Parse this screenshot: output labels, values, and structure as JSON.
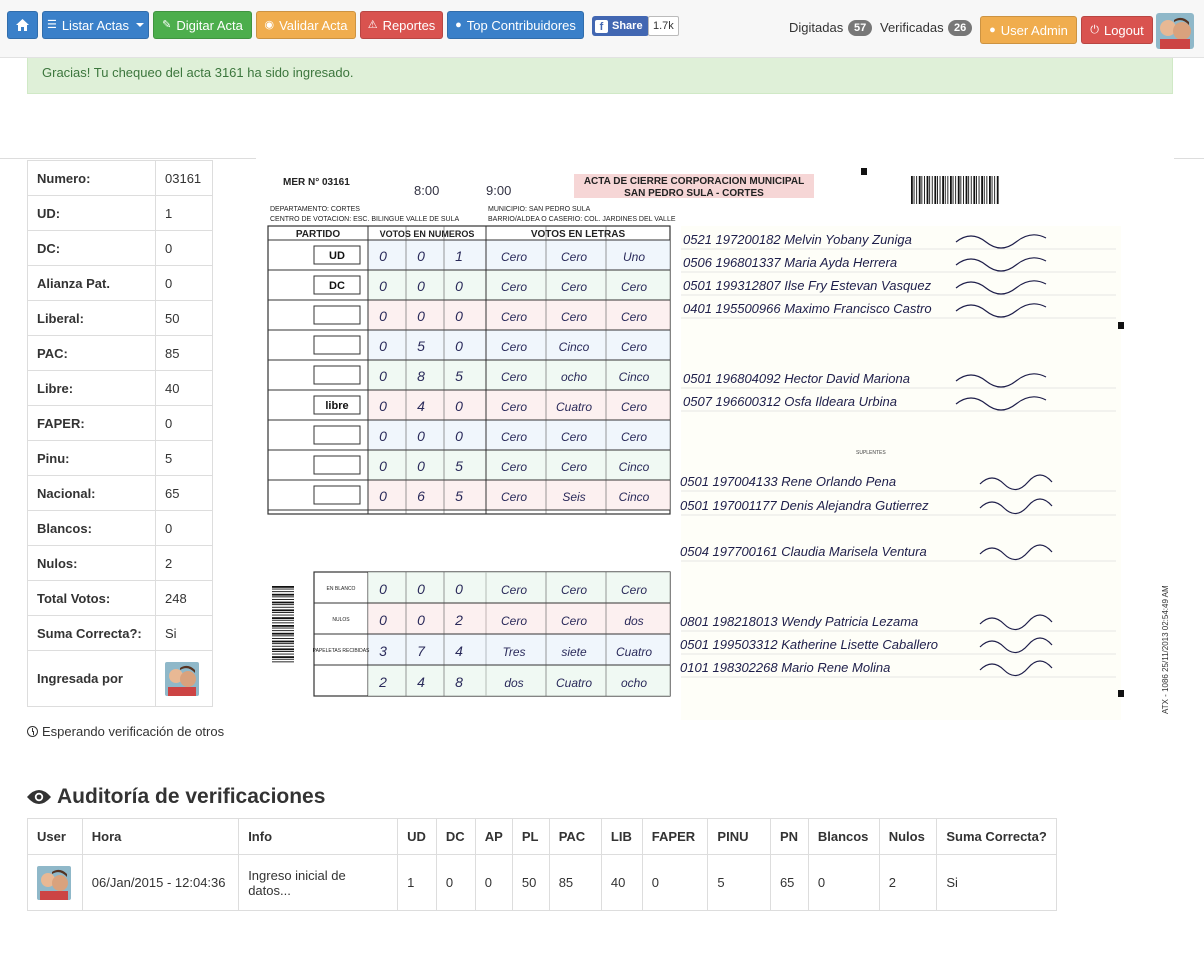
{
  "navbar": {
    "home_icon": "home-icon",
    "listar_label": "Listar Actas",
    "digitar_label": "Digitar Acta",
    "validar_label": "Validar Acta",
    "reportes_label": "Reportes",
    "top_label": "Top Contribuidores",
    "share_label": "Share",
    "share_count": "1.7k",
    "digitadas_label": "Digitadas",
    "digitadas_count": "57",
    "verificadas_label": "Verificadas",
    "verificadas_count": "26",
    "user_label": "User Admin",
    "logout_label": "Logout"
  },
  "alert": {
    "text": "Gracias! Tu chequeo del acta 3161 ha sido ingresado."
  },
  "acta": {
    "rows": [
      {
        "k": "Numero:",
        "v": "03161"
      },
      {
        "k": "UD:",
        "v": "1"
      },
      {
        "k": "DC:",
        "v": "0"
      },
      {
        "k": "Alianza Pat.",
        "v": "0"
      },
      {
        "k": "Liberal:",
        "v": "50"
      },
      {
        "k": "PAC:",
        "v": "85"
      },
      {
        "k": "Libre:",
        "v": "40"
      },
      {
        "k": "FAPER:",
        "v": "0"
      },
      {
        "k": "Pinu:",
        "v": "5"
      },
      {
        "k": "Nacional:",
        "v": "65"
      },
      {
        "k": "Blancos:",
        "v": "0"
      },
      {
        "k": "Nulos:",
        "v": "2"
      },
      {
        "k": "Total Votos:",
        "v": "248"
      },
      {
        "k": "Suma Correcta?:",
        "v": "Si"
      }
    ],
    "ingresada_label": "Ingresada por"
  },
  "waiting": "Esperando verificación de otros",
  "document": {
    "mer": "MER N° 03161",
    "title1": "ACTA DE CIERRE CORPORACION MUNICIPAL",
    "title2": "SAN PEDRO SULA - CORTES",
    "depto": "DEPARTAMENTO: CORTES",
    "municipio": "MUNICIPIO: SAN PEDRO SULA",
    "centro": "CENTRO DE VOTACION: ESC. BILINGUE VALLE DE SULA",
    "barrio": "BARRIO/ALDEA O CASERIO: COL. JARDINES DEL VALLE",
    "hora_inicio": "8:00",
    "hora_cierre": "9:00",
    "col_partido": "PARTIDO",
    "col_numeros": "VOTOS EN NUMEROS",
    "col_letras": "VOTOS EN LETRAS",
    "suplentes": "SUPLENTES",
    "stamp": "ATX - 1086 25/11/2013 02:54:49 AM",
    "parties": [
      {
        "logo": "UD",
        "nums": [
          "0",
          "0",
          "1"
        ],
        "words": [
          "Cero",
          "Cero",
          "Uno"
        ]
      },
      {
        "logo": "DC",
        "nums": [
          "0",
          "0",
          "0"
        ],
        "words": [
          "Cero",
          "Cero",
          "Cero"
        ]
      },
      {
        "logo": "",
        "nums": [
          "0",
          "0",
          "0"
        ],
        "words": [
          "Cero",
          "Cero",
          "Cero"
        ]
      },
      {
        "logo": "",
        "nums": [
          "0",
          "5",
          "0"
        ],
        "words": [
          "Cero",
          "Cinco",
          "Cero"
        ]
      },
      {
        "logo": "",
        "nums": [
          "0",
          "8",
          "5"
        ],
        "words": [
          "Cero",
          "ocho",
          "Cinco"
        ]
      },
      {
        "logo": "libre",
        "nums": [
          "0",
          "4",
          "0"
        ],
        "words": [
          "Cero",
          "Cuatro",
          "Cero"
        ]
      },
      {
        "logo": "",
        "nums": [
          "0",
          "0",
          "0"
        ],
        "words": [
          "Cero",
          "Cero",
          "Cero"
        ]
      },
      {
        "logo": "",
        "nums": [
          "0",
          "0",
          "5"
        ],
        "words": [
          "Cero",
          "Cero",
          "Cinco"
        ]
      },
      {
        "logo": "",
        "nums": [
          "0",
          "6",
          "5"
        ],
        "words": [
          "Cero",
          "Seis",
          "Cinco"
        ]
      }
    ],
    "totals": [
      {
        "label": "EN BLANCO",
        "nums": [
          "0",
          "0",
          "0"
        ],
        "words": [
          "Cero",
          "Cero",
          "Cero"
        ]
      },
      {
        "label": "NULOS",
        "nums": [
          "0",
          "0",
          "2"
        ],
        "words": [
          "Cero",
          "Cero",
          "dos"
        ]
      },
      {
        "label": "PAPELETAS RECIBIDAS",
        "nums": [
          "3",
          "7",
          "4"
        ],
        "words": [
          "Tres",
          "siete",
          "Cuatro"
        ]
      },
      {
        "label": "",
        "nums": [
          "2",
          "4",
          "8"
        ],
        "words": [
          "dos",
          "Cuatro",
          "ocho"
        ]
      }
    ],
    "members": [
      "0521 197200182  Melvin Yobany Zuniga",
      "0506 196801337  Maria Ayda Herrera",
      "0501 199312807  Ilse Fry Estevan Vasquez",
      "0401 195500966  Maximo Francisco Castro",
      "0501 196804092  Hector David Mariona",
      "0507 196600312  Osfa Ildeara Urbina"
    ],
    "suplentes_list": [
      "0501 197004133  Rene Orlando Pena",
      "0501 197001177  Denis Alejandra Gutierrez",
      "0504 197700161  Claudia Marisela Ventura",
      "0801 198218013  Wendy Patricia Lezama",
      "0501 199503312  Katherine Lisette Caballero",
      "0101 198302268  Mario Rene Molina"
    ]
  },
  "audit": {
    "title": "Auditoría de verificaciones",
    "headers": [
      "User",
      "Hora",
      "Info",
      "UD",
      "DC",
      "AP",
      "PL",
      "PAC",
      "LIB",
      "FAPER",
      "PINU",
      "PN",
      "Blancos",
      "Nulos",
      "Suma Correcta?"
    ],
    "row": [
      "",
      "06/Jan/2015 - 12:04:36",
      "Ingreso inicial de datos...",
      "1",
      "0",
      "0",
      "50",
      "85",
      "40",
      "0",
      "5",
      "65",
      "0",
      "2",
      "Si"
    ]
  }
}
